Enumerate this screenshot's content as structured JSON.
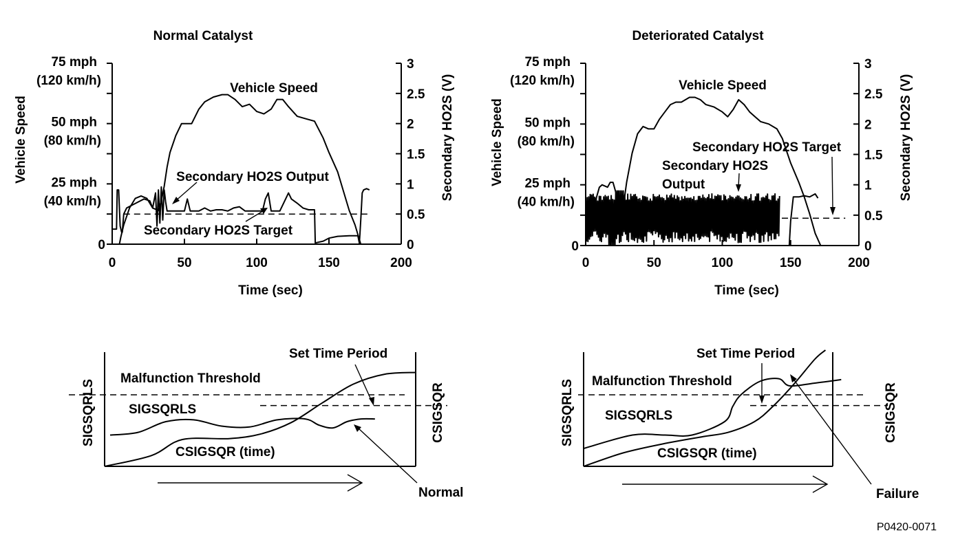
{
  "figure_id": "P0420-0071",
  "colors": {
    "ink": "#000000",
    "background": "#ffffff"
  },
  "chart_data": [
    {
      "type": "line",
      "title": "Normal Catalyst",
      "xlabel": "Time (sec)",
      "ylabel": "Vehicle Speed",
      "ylabel_right": "Secondary HO2S (V)",
      "xlim": [
        0,
        200
      ],
      "ylim_right": [
        0,
        3
      ],
      "grid": false,
      "x_ticks": [
        "0",
        "50",
        "100",
        "150",
        "200"
      ],
      "y_ticks_left": [
        {
          "value": 0,
          "line1": "0",
          "line2": ""
        },
        {
          "value": 25,
          "line1": "25 mph",
          "line2": "(40 km/h)"
        },
        {
          "value": 50,
          "line1": "50 mph",
          "line2": "(80 km/h)"
        },
        {
          "value": 75,
          "line1": "75 mph",
          "line2": "(120 km/h)"
        }
      ],
      "y_ticks_right": [
        "0",
        "0.5",
        "1",
        "1.5",
        "2",
        "2.5",
        "3"
      ],
      "annotations": {
        "speed": "Vehicle Speed",
        "output": "Secondary HO2S Output",
        "target": "Secondary HO2S Target"
      },
      "series": [
        {
          "name": "Vehicle Speed",
          "axis": "left_mph",
          "x": [
            0,
            5,
            6,
            8,
            12,
            16,
            20,
            24,
            28,
            32,
            34,
            36,
            38,
            40,
            44,
            48,
            55,
            60,
            64,
            70,
            76,
            80,
            85,
            90,
            95,
            100,
            105,
            110,
            114,
            118,
            122,
            128,
            134,
            140,
            146,
            150,
            156,
            160,
            164,
            168,
            172
          ],
          "y": [
            0,
            0,
            3,
            8,
            15,
            19,
            20,
            19,
            15,
            14,
            18,
            24,
            32,
            38,
            45,
            50,
            50,
            56,
            59,
            61,
            62,
            62,
            60,
            57,
            58,
            55,
            54,
            56,
            60,
            60,
            57,
            53,
            52,
            51,
            44,
            38,
            30,
            22,
            14,
            8,
            0
          ]
        },
        {
          "name": "Secondary HO2S Output",
          "axis": "right_volts",
          "x": [
            0,
            3,
            3.5,
            4.5,
            5.5,
            6.5,
            7,
            8,
            10,
            14,
            18,
            22,
            26,
            28,
            30,
            31,
            32,
            33,
            34,
            35,
            36,
            37,
            38,
            40,
            44,
            50,
            52,
            54,
            56,
            60,
            64,
            68,
            72,
            76,
            80,
            84,
            88,
            92,
            96,
            100,
            104,
            106,
            108,
            110,
            112,
            116,
            120,
            122,
            124,
            128,
            132,
            136,
            140,
            140.5,
            146,
            150,
            156,
            164,
            170,
            171,
            172
          ],
          "y": [
            0.25,
            0.25,
            0.9,
            0.9,
            0.3,
            0.2,
            0.2,
            0.5,
            0.6,
            0.65,
            0.7,
            0.75,
            0.72,
            0.6,
            0.85,
            0.3,
            0.9,
            0.35,
            0.95,
            0.4,
            0.9,
            0.7,
            0.55,
            0.55,
            0.55,
            0.55,
            0.75,
            0.55,
            0.55,
            0.55,
            0.6,
            0.55,
            0.57,
            0.57,
            0.55,
            0.6,
            0.62,
            0.55,
            0.55,
            0.55,
            0.55,
            0.75,
            0.85,
            0.55,
            0.55,
            0.55,
            0.75,
            0.85,
            0.75,
            0.68,
            0.6,
            0.57,
            0.57,
            0.02,
            0.05,
            0.1,
            0.13,
            0.14,
            0.14,
            0.02,
            0.0
          ]
        },
        {
          "name": "Secondary HO2S Output (after stop)",
          "axis": "right_volts",
          "x": [
            171,
            172,
            173,
            174,
            176,
            178
          ],
          "y": [
            0.0,
            0.4,
            0.85,
            0.9,
            0.92,
            0.9
          ]
        },
        {
          "name": "Secondary HO2S Target",
          "axis": "right_volts",
          "style": "dashed",
          "x": [
            8,
            178
          ],
          "y": [
            0.5,
            0.5
          ]
        }
      ]
    },
    {
      "type": "line",
      "title": "Deteriorated Catalyst",
      "xlabel": "Time (sec)",
      "ylabel": "Vehicle Speed",
      "ylabel_right": "Secondary HO2S (V)",
      "xlim": [
        0,
        200
      ],
      "ylim_right": [
        0,
        3
      ],
      "grid": false,
      "x_ticks": [
        "0",
        "50",
        "100",
        "150",
        "200"
      ],
      "y_ticks_left": [
        {
          "value": 0,
          "line1": "0",
          "line2": ""
        },
        {
          "value": 25,
          "line1": "25 mph",
          "line2": "(40 km/h)"
        },
        {
          "value": 50,
          "line1": "50 mph",
          "line2": "(80 km/h)"
        },
        {
          "value": 75,
          "line1": "75 mph",
          "line2": "(120 km/h)"
        }
      ],
      "y_ticks_right": [
        "0",
        "0.5",
        "1",
        "1.5",
        "2",
        "2.5",
        "3"
      ],
      "annotations": {
        "speed": "Vehicle Speed",
        "output_line1": "Secondary HO2S",
        "output_line2": "Output",
        "target": "Secondary HO2S Target"
      },
      "series": [
        {
          "name": "Vehicle Speed",
          "axis": "left_mph",
          "x": [
            0,
            4,
            8,
            10,
            12,
            16,
            18,
            20,
            22,
            24,
            26,
            28,
            30,
            34,
            38,
            42,
            46,
            50,
            54,
            58,
            62,
            66,
            70,
            76,
            80,
            84,
            88,
            94,
            100,
            104,
            108,
            112,
            116,
            120,
            124,
            128,
            134,
            140,
            144,
            150,
            156,
            160,
            164,
            168,
            172
          ],
          "y": [
            10,
            12,
            20,
            24,
            25,
            24,
            26,
            26,
            22,
            17,
            14,
            18,
            26,
            38,
            46,
            49,
            48,
            48,
            52,
            55,
            58,
            59,
            59,
            61,
            61,
            60,
            58,
            57,
            55,
            53,
            56,
            60,
            58,
            55,
            53,
            51,
            50,
            48,
            44,
            34,
            26,
            20,
            13,
            5,
            0
          ]
        },
        {
          "name": "Secondary HO2S Output",
          "axis": "right_volts",
          "style": "rapid oscillation",
          "x_range": [
            0,
            142
          ],
          "y_range": [
            0.05,
            0.85
          ],
          "x_after": [
            142,
            149,
            150,
            152,
            156,
            160,
            164,
            168,
            170
          ],
          "y_after": [
            0.0,
            0.0,
            0.4,
            0.8,
            0.8,
            0.82,
            0.8,
            0.85,
            0.78
          ]
        },
        {
          "name": "Secondary HO2S Target",
          "axis": "right_volts",
          "style": "dashed",
          "x": [
            0,
            190
          ],
          "y": [
            0.45,
            0.45
          ]
        }
      ]
    },
    {
      "type": "line",
      "title": "",
      "xlabel": "",
      "xlabel_arrow": "time",
      "ylabel": "SIGSQRLS",
      "ylabel_right": "CSIGSQR",
      "grid": false,
      "annotations": {
        "threshold": "Malfunction Threshold",
        "set_time": "Set Time Period",
        "sigsqrls": "SIGSQRLS",
        "csigsqr": "CSIGSQR (time)",
        "result": "Normal"
      },
      "series": [
        {
          "name": "SIGSQRLS",
          "x": [
            0,
            0.1,
            0.2,
            0.3,
            0.4,
            0.5,
            0.6,
            0.7,
            0.75,
            0.8,
            0.85,
            0.9,
            0.95
          ],
          "y": [
            0.35,
            0.38,
            0.5,
            0.52,
            0.45,
            0.44,
            0.52,
            0.53,
            0.46,
            0.43,
            0.5,
            0.53,
            0.53
          ]
        },
        {
          "name": "CSIGSQR (time)",
          "x": [
            0,
            0.15,
            0.25,
            0.4,
            0.5,
            0.6,
            0.7,
            0.8,
            0.9,
            1.0
          ],
          "y": [
            0.0,
            0.12,
            0.3,
            0.31,
            0.36,
            0.49,
            0.71,
            0.92,
            1.03,
            1.05
          ]
        },
        {
          "name": "Malfunction Threshold",
          "style": "dashed",
          "y": 0.8
        },
        {
          "name": "Set Time Period",
          "style": "dashed",
          "y": 0.68
        }
      ]
    },
    {
      "type": "line",
      "title": "",
      "xlabel": "",
      "xlabel_arrow": "time",
      "ylabel": "SIGSQRLS",
      "ylabel_right": "CSIGSQR",
      "grid": false,
      "annotations": {
        "threshold": "Malfunction Threshold",
        "set_time": "Set Time Period",
        "sigsqrls": "SIGSQRLS",
        "csigsqr": "CSIGSQR (time)",
        "result": "Failure"
      },
      "series": [
        {
          "name": "SIGSQRLS",
          "x": [
            0,
            0.18,
            0.3,
            0.4,
            0.52,
            0.55,
            0.58,
            0.65,
            0.72,
            0.76,
            0.85,
            0.95
          ],
          "y": [
            0.2,
            0.35,
            0.35,
            0.35,
            0.5,
            0.67,
            0.8,
            0.95,
            0.98,
            0.9,
            0.93,
            0.97
          ]
        },
        {
          "name": "CSIGSQR (time)",
          "x": [
            0,
            0.15,
            0.3,
            0.45,
            0.55,
            0.65,
            0.72,
            0.8,
            0.88,
            0.92
          ],
          "y": [
            0.0,
            0.15,
            0.25,
            0.33,
            0.38,
            0.5,
            0.67,
            0.92,
            1.2,
            1.3
          ]
        },
        {
          "name": "Malfunction Threshold",
          "style": "dashed",
          "y": 0.8
        },
        {
          "name": "Set Time Period",
          "style": "dashed",
          "y": 0.68
        }
      ]
    }
  ]
}
